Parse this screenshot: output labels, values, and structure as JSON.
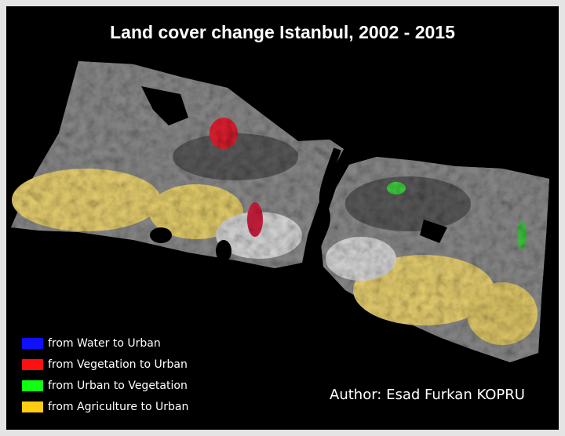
{
  "title": "Land cover change Istanbul, 2002 - 2015",
  "legend": [
    {
      "label": "from Water to Urban",
      "color": "#1010ff"
    },
    {
      "label": "from Vegetation to Urban",
      "color": "#ff1010"
    },
    {
      "label": "from Urban to Vegetation",
      "color": "#10ff10"
    },
    {
      "label": "from Agriculture to Urban",
      "color": "#ffcc10"
    }
  ],
  "author": "Author: Esad Furkan KOPRU"
}
